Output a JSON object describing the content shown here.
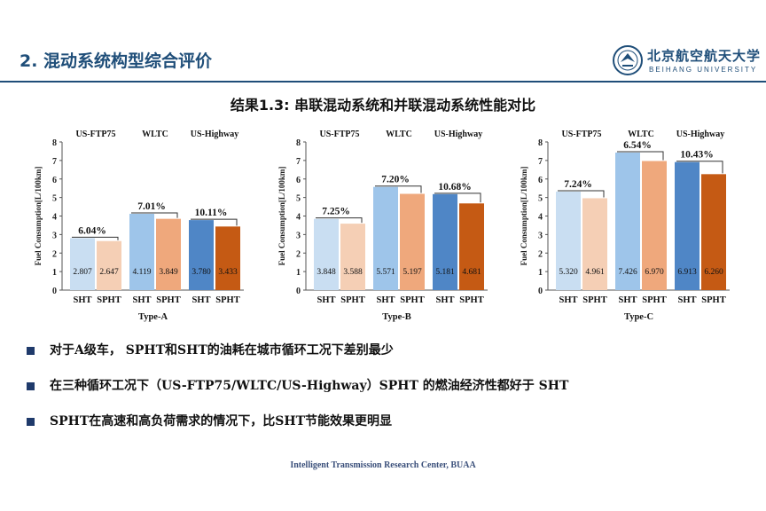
{
  "header": {
    "section_title": "2. 混动系统构型综合评价",
    "logo_cn": "北京航空航天大学",
    "logo_en": "BEIHANG UNIVERSITY"
  },
  "subtitle": "结果1.3: 串联混动系统和并联混动系统性能对比",
  "bullets": [
    "对于A级车， SPHT和SHT的油耗在城市循环工况下差别最少",
    "在三种循环工况下（US-FTP75/WLTC/US-Highway）SPHT 的燃油经济性都好于 SHT",
    "SPHT在高速和高负荷需求的情况下，比SHT节能效果更明显"
  ],
  "footer": "Intelligent Transmission Research Center, BUAA",
  "colors": {
    "accent": "#1f4e79",
    "sht": [
      "#c9def2",
      "#9ec5ea",
      "#4f86c6"
    ],
    "spht": [
      "#f5cfb5",
      "#efa87c",
      "#c55a14"
    ]
  },
  "chart_data": [
    {
      "type": "bar",
      "title": "Type-A",
      "ylabel": "Fuel Consumption[L/100km]",
      "ylim": [
        0,
        8
      ],
      "yticks": [
        0,
        1,
        2,
        3,
        4,
        5,
        6,
        7,
        8
      ],
      "categories": [
        "US-FTP75",
        "WLTC",
        "US-Highway"
      ],
      "series": [
        {
          "name": "SHT",
          "values": [
            2.807,
            4.119,
            3.78
          ]
        },
        {
          "name": "SPHT",
          "values": [
            2.647,
            3.849,
            3.433
          ]
        }
      ],
      "value_labels": {
        "SHT": [
          "2.807",
          "4.119",
          "3.780"
        ],
        "SPHT": [
          "2.647",
          "3.849",
          "3.433"
        ]
      },
      "annotations": [
        "6.04%",
        "7.01%",
        "10.11%"
      ]
    },
    {
      "type": "bar",
      "title": "Type-B",
      "ylabel": "Fuel Consumption[L/100km]",
      "ylim": [
        0,
        8
      ],
      "yticks": [
        0,
        1,
        2,
        3,
        4,
        5,
        6,
        7,
        8
      ],
      "categories": [
        "US-FTP75",
        "WLTC",
        "US-Highway"
      ],
      "series": [
        {
          "name": "SHT",
          "values": [
            3.848,
            5.571,
            5.181
          ]
        },
        {
          "name": "SPHT",
          "values": [
            3.588,
            5.197,
            4.681
          ]
        }
      ],
      "value_labels": {
        "SHT": [
          "3.848",
          "5.571",
          "5.181"
        ],
        "SPHT": [
          "3.588",
          "5.197",
          "4.681"
        ]
      },
      "annotations": [
        "7.25%",
        "7.20%",
        "10.68%"
      ]
    },
    {
      "type": "bar",
      "title": "Type-C",
      "ylabel": "Fuel Consumption[L/100km]",
      "ylim": [
        0,
        8
      ],
      "yticks": [
        0,
        1,
        2,
        3,
        4,
        5,
        6,
        7,
        8
      ],
      "categories": [
        "US-FTP75",
        "WLTC",
        "US-Highway"
      ],
      "series": [
        {
          "name": "SHT",
          "values": [
            5.32,
            7.426,
            6.913
          ]
        },
        {
          "name": "SPHT",
          "values": [
            4.961,
            6.97,
            6.26
          ]
        }
      ],
      "value_labels": {
        "SHT": [
          "5.320",
          "7.426",
          "6.913"
        ],
        "SPHT": [
          "4.961",
          "6.970",
          "6.260"
        ]
      },
      "annotations": [
        "7.24%",
        "6.54%",
        "10.43%"
      ]
    }
  ]
}
